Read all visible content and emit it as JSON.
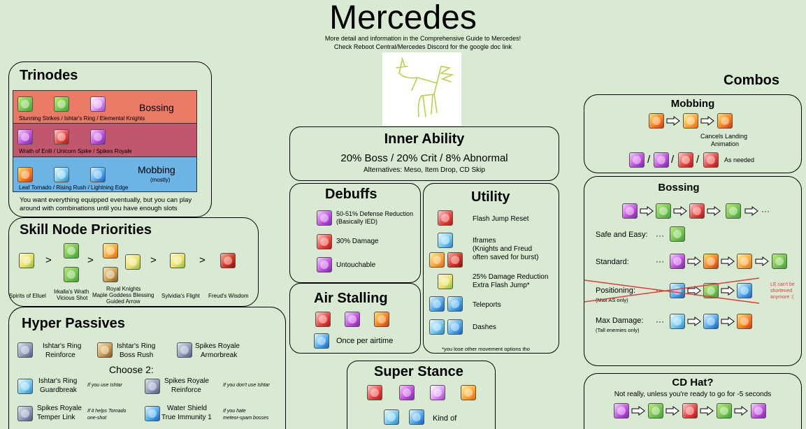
{
  "header": {
    "title": "Mercedes",
    "sub1": "More detail and information in the Comprehensive Guide to Mercedes!",
    "sub2": "Check Reboot Central/Mercedes Discord for the google doc link"
  },
  "trinodes": {
    "title": "Trinodes",
    "row1_label": "Bossing",
    "row1_text": "Stunning Strikes / Ishtar's Ring / Elemental Knights",
    "row2_text": "Wrath of Enlil / Unicorn Spike / Spikes Royale",
    "row3_label": "Mobbing",
    "row3_sub": "(mostly)",
    "row3_text": "Leaf Tornado / Rising Rush / Lightning Edge",
    "note1": "You want everything equipped eventually, but you can play",
    "note2": "around with combinations until you have enough slots",
    "colors": {
      "bossing": "#ea7a66",
      "wrath": "#c2566e",
      "mobbing": "#6cb4e6"
    }
  },
  "skill_nodes": {
    "title": "Skill Node Priorities",
    "gt": ">",
    "c1": "Spirits of Elluel",
    "c2a": "Irkalla's Wrath",
    "c2b": "Vicious Shot",
    "c3a": "Royal Knights",
    "c3b": "Maple Goddess Blessing",
    "c3c": "Guided Arrow",
    "c4": "Sylvidia's Flight",
    "c5": "Freud's Wisdom"
  },
  "hyper": {
    "title": "Hyper Passives",
    "p1a": "Ishtar's Ring",
    "p1b": "Reinforce",
    "p2a": "Ishtar's Ring",
    "p2b": "Boss Rush",
    "p3a": "Spikes Royale",
    "p3b": "Armorbreak",
    "choose": "Choose 2:",
    "q1a": "Ishtar's Ring",
    "q1b": "Guardbreak",
    "q1n": "If you use Ishtar",
    "q2a": "Spikes Royale",
    "q2b": "Reinforce",
    "q2n": "If you don't use Ishtar",
    "q3a": "Spikes Royale",
    "q3b": "Temper Link",
    "q3n1": "If it helps Tornado",
    "q3n2": "one-shot",
    "q4a": "Water Shield",
    "q4b": "True Immunity 1",
    "q4n1": "If you hate",
    "q4n2": "meteor-spam bosses"
  },
  "inner": {
    "title": "Inner Ability",
    "main": "20% Boss / 20% Crit / 8% Abnormal",
    "alt": "Alternatives: Meso, Item Drop, CD Skip"
  },
  "debuffs": {
    "title": "Debuffs",
    "d1a": "50-51% Defense Reduction",
    "d1b": "(Basically IED)",
    "d2": "30% Damage",
    "d3": "Untouchable"
  },
  "utility": {
    "title": "Utility",
    "u1": "Flash Jump Reset",
    "u2a": "Iframes",
    "u2b": "(Knights and Freud",
    "u2c": "often saved for burst)",
    "u3a": "25% Damage Reduction",
    "u3b": "Extra Flash Jump*",
    "u4": "Teleports",
    "u5": "Dashes",
    "foot": "*you lose other movement options tho"
  },
  "air": {
    "title": "Air Stalling",
    "note": "Once per airtime"
  },
  "stance": {
    "title": "Super Stance",
    "note": "Kind of"
  },
  "combos": {
    "title": "Combos",
    "mob_title": "Mobbing",
    "mob_note1": "Cancels Landing",
    "mob_note2": "Animation",
    "slash": "/",
    "as_needed": "As needed",
    "boss_title": "Bossing",
    "ellipsis": "···",
    "safe": "Safe and Easy:",
    "standard": "Standard:",
    "positioning": "Positioning:",
    "pos_sub": "(Max AS only)",
    "le_note1": "LE can't be",
    "le_note2": "shortened",
    "le_note3": "anymore :(",
    "maxdmg": "Max Damage:",
    "max_sub": "(Tall enemies only)",
    "cd_title": "CD Hat?",
    "cd_note": "Not really, unless you're ready to go for -5 seconds"
  }
}
